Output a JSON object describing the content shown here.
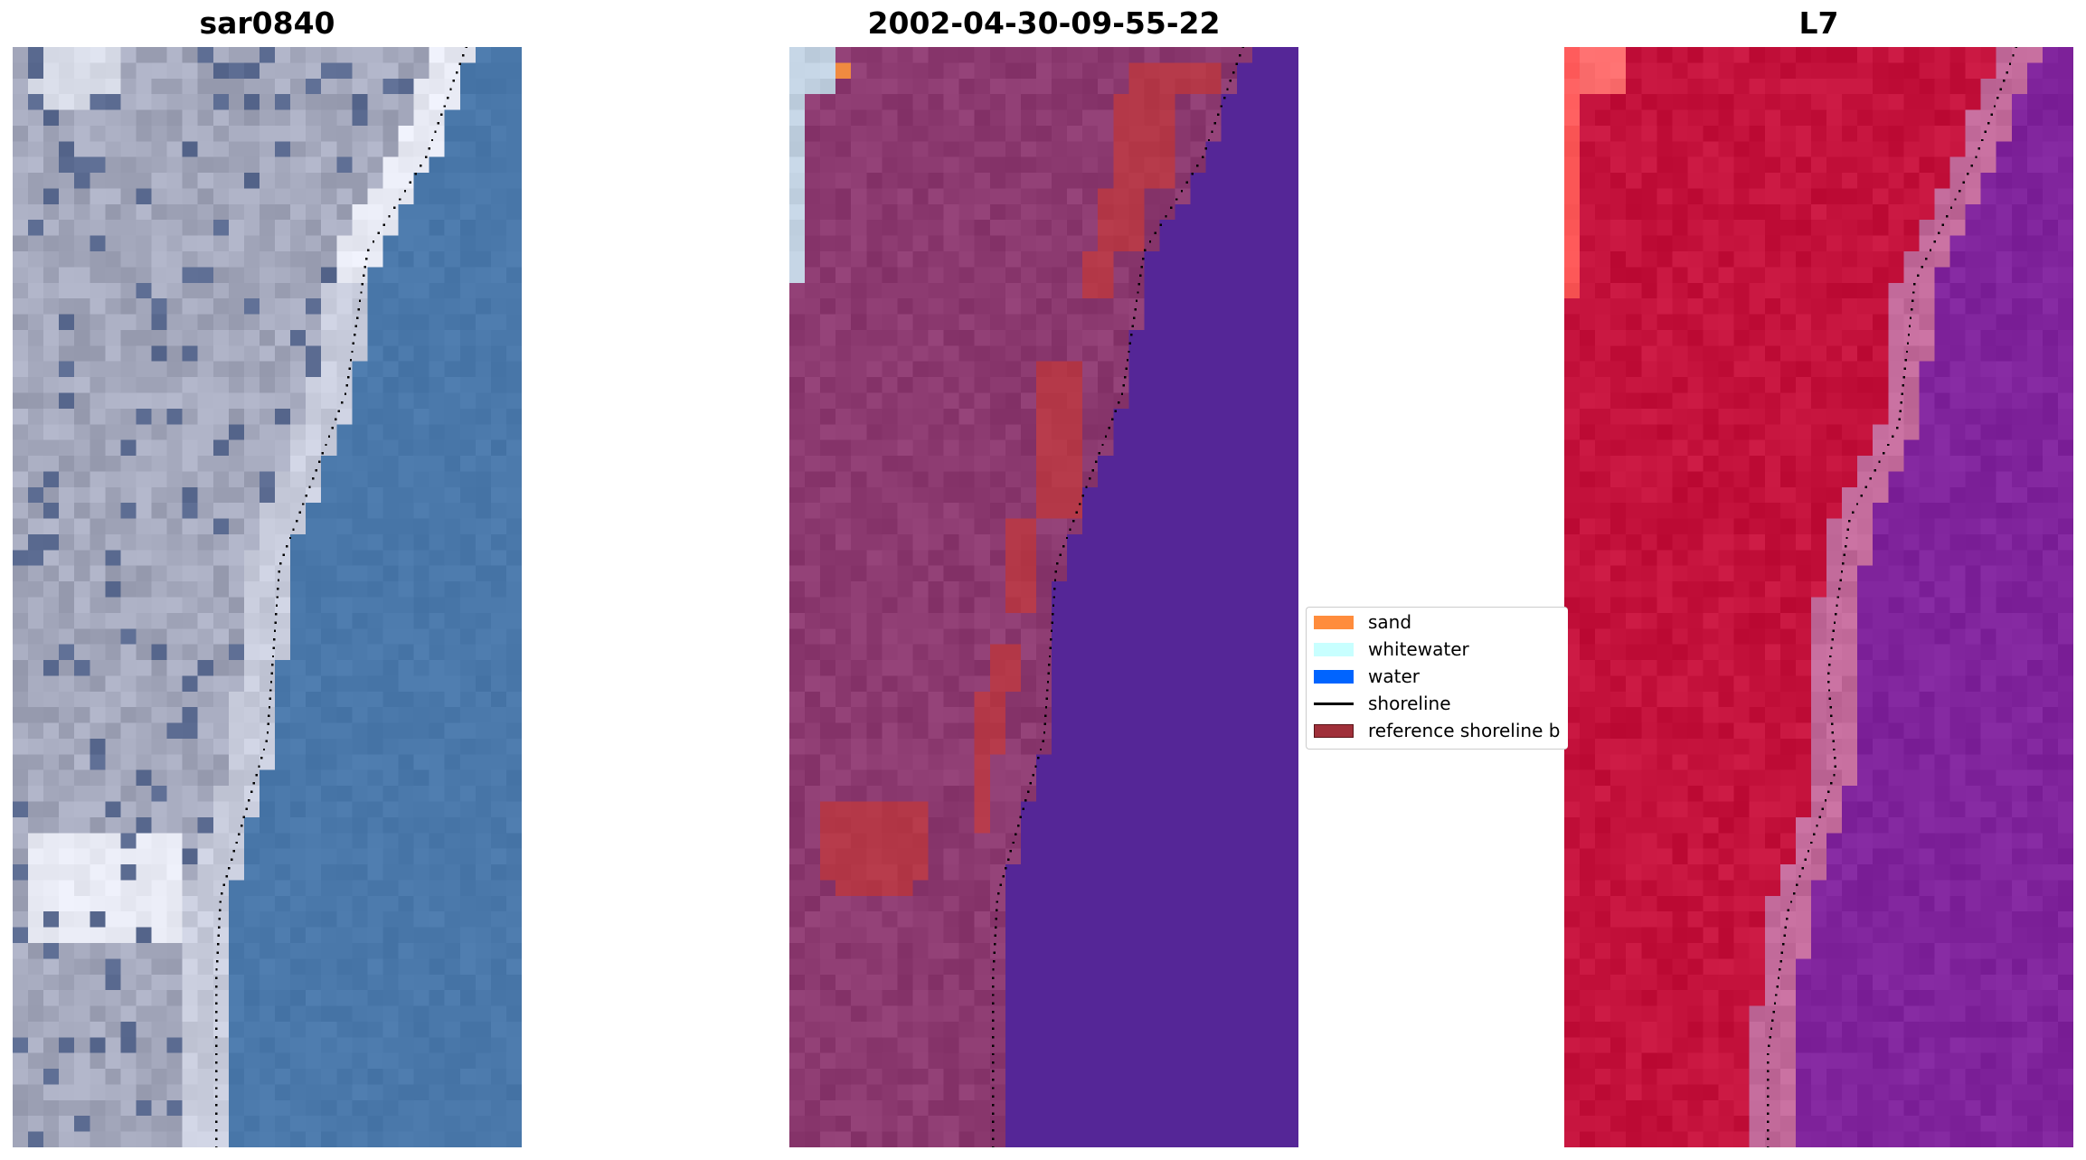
{
  "panels": [
    {
      "title": "sar0840"
    },
    {
      "title": "2002-04-30-09-55-22"
    },
    {
      "title": "L7"
    }
  ],
  "legend": {
    "items": [
      {
        "label": "sand",
        "color": "#ff8c3c",
        "kind": "patch"
      },
      {
        "label": "whitewater",
        "color": "#c8ffff",
        "kind": "patch"
      },
      {
        "label": "water",
        "color": "#0064ff",
        "kind": "patch"
      },
      {
        "label": "shoreline",
        "color": "#000000",
        "kind": "line"
      },
      {
        "label": "reference shoreline b",
        "color": "#a0303a",
        "kind": "patch"
      }
    ]
  },
  "colors": {
    "rgb_sand": "#a4a8bc",
    "rgb_water": "#4a78aa",
    "rgb_whitewater": "#e8eaf4",
    "class_land": "#8c3a70",
    "class_buffer": "#b43848",
    "class_water": "#552697",
    "class_pixel_whitewater": "#c0d0e0",
    "class_pixel_sand": "#f08a40",
    "nir_land": "#c4123c",
    "nir_water": "#80249c",
    "nir_bright": "#ff5a5a"
  }
}
